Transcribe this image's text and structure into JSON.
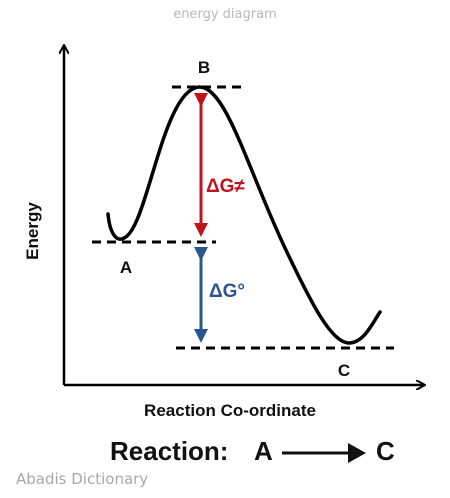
{
  "caption": "energy diagram",
  "watermark": "Abadis Dictionary",
  "diagram": {
    "y_axis_label": "Energy",
    "x_axis_label": "Reaction Co-ordinate",
    "points": {
      "A": "A",
      "B": "B",
      "C": "C"
    },
    "activation_label": "ΔG≠",
    "standard_label": "ΔG°",
    "colors": {
      "activation": "#c0131c",
      "standard": "#2b5591",
      "curve": "#000000"
    }
  },
  "reaction": {
    "prefix": "Reaction:",
    "reactant": "A",
    "product": "C"
  }
}
